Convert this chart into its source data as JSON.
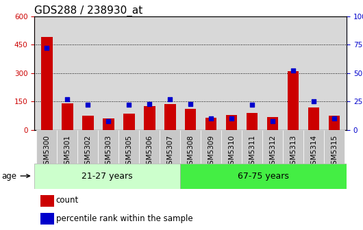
{
  "title": "GDS288 / 238930_at",
  "categories": [
    "GSM5300",
    "GSM5301",
    "GSM5302",
    "GSM5303",
    "GSM5305",
    "GSM5306",
    "GSM5307",
    "GSM5308",
    "GSM5309",
    "GSM5310",
    "GSM5311",
    "GSM5312",
    "GSM5313",
    "GSM5314",
    "GSM5315"
  ],
  "counts": [
    490,
    140,
    75,
    60,
    85,
    125,
    135,
    110,
    65,
    78,
    88,
    68,
    308,
    118,
    75
  ],
  "percentiles": [
    72,
    27,
    22,
    8,
    22,
    23,
    27,
    23,
    10,
    10,
    22,
    8,
    52,
    25,
    10
  ],
  "group1_label": "21-27 years",
  "group2_label": "67-75 years",
  "group1_count": 7,
  "group2_count": 8,
  "bar_color": "#cc0000",
  "dot_color": "#0000cc",
  "plot_bg": "#d8d8d8",
  "xtick_bg": "#c0c0c0",
  "group1_bg": "#ccffcc",
  "group2_bg": "#44ee44",
  "ylim_left": [
    0,
    600
  ],
  "ylim_right": [
    0,
    100
  ],
  "yticks_left": [
    0,
    150,
    300,
    450,
    600
  ],
  "yticks_right": [
    0,
    25,
    50,
    75,
    100
  ],
  "age_label": "age",
  "legend_count": "count",
  "legend_percentile": "percentile rank within the sample",
  "title_fontsize": 11,
  "tick_fontsize": 7.5,
  "label_fontsize": 8.5,
  "bar_width": 0.55
}
